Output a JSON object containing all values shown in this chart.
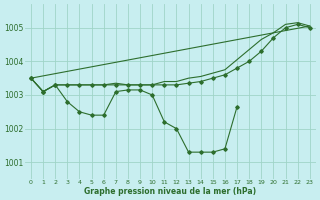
{
  "title": "Graphe pression niveau de la mer (hPa)",
  "background_color": "#c8eef0",
  "grid_color": "#a0d4c8",
  "line_color": "#2d6e2d",
  "xlim": [
    -0.5,
    23.5
  ],
  "ylim": [
    1000.5,
    1005.7
  ],
  "yticks": [
    1001,
    1002,
    1003,
    1004,
    1005
  ],
  "xticks": [
    0,
    1,
    2,
    3,
    4,
    5,
    6,
    7,
    8,
    9,
    10,
    11,
    12,
    13,
    14,
    15,
    16,
    17,
    18,
    19,
    20,
    21,
    22,
    23
  ],
  "line1_x": [
    0,
    1,
    2,
    3,
    4,
    5,
    6,
    7,
    8,
    9,
    10,
    11,
    12,
    13,
    14,
    15,
    16,
    17
  ],
  "line1_y": [
    1003.5,
    1003.1,
    1003.3,
    1002.8,
    1002.5,
    1002.4,
    1002.4,
    1003.1,
    1003.15,
    1003.15,
    1003.0,
    1002.2,
    1002.0,
    1001.3,
    1001.3,
    1001.3,
    1001.4,
    1002.65
  ],
  "line2_x": [
    0,
    1,
    2,
    3,
    4,
    5,
    6,
    7,
    8,
    9,
    10,
    11,
    12,
    13,
    14,
    15,
    16,
    17,
    18,
    19,
    20,
    21,
    22,
    23
  ],
  "line2_y": [
    1003.5,
    1003.1,
    1003.3,
    1003.3,
    1003.3,
    1003.3,
    1003.3,
    1003.3,
    1003.3,
    1003.3,
    1003.3,
    1003.3,
    1003.3,
    1003.35,
    1003.4,
    1003.5,
    1003.6,
    1003.8,
    1004.0,
    1004.3,
    1004.7,
    1005.0,
    1005.1,
    1005.0
  ],
  "line3_x": [
    0,
    23
  ],
  "line3_y": [
    1003.5,
    1005.05
  ],
  "line4_x": [
    0,
    1,
    2,
    3,
    4,
    5,
    6,
    7,
    8,
    9,
    10,
    11,
    12,
    13,
    14,
    15,
    16,
    17,
    18,
    19,
    20,
    21,
    22,
    23
  ],
  "line4_y": [
    1003.5,
    1003.1,
    1003.3,
    1003.3,
    1003.3,
    1003.3,
    1003.3,
    1003.35,
    1003.3,
    1003.3,
    1003.3,
    1003.4,
    1003.4,
    1003.5,
    1003.55,
    1003.65,
    1003.75,
    1004.05,
    1004.35,
    1004.65,
    1004.85,
    1005.1,
    1005.15,
    1005.05
  ]
}
